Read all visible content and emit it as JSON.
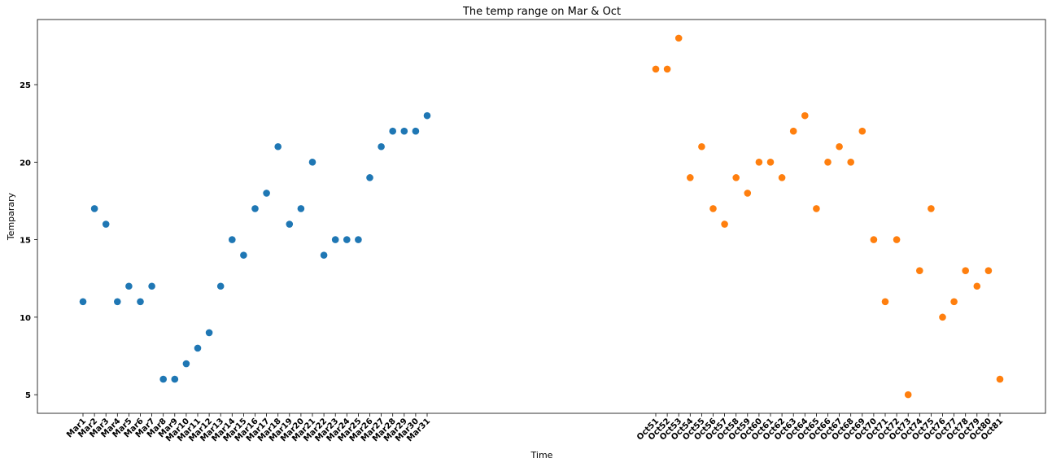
{
  "chart_data": {
    "type": "scatter",
    "title": "The temp range on Mar & Oct",
    "xlabel": "Time",
    "ylabel": "Temparary",
    "yticks": [
      5,
      10,
      15,
      20,
      25
    ],
    "ylim": [
      3.8,
      29.2
    ],
    "grid": false,
    "series": [
      {
        "color": "#1f77b4",
        "x": [
          "Mar1",
          "Mar2",
          "Mar3",
          "Mar4",
          "Mar5",
          "Mar6",
          "Mar7",
          "Mar8",
          "Mar9",
          "Mar10",
          "Mar11",
          "Mar12",
          "Mar13",
          "Mar14",
          "Mar15",
          "Mar16",
          "Mar17",
          "Mar18",
          "Mar19",
          "Mar20",
          "Mar21",
          "Mar22",
          "Mar23",
          "Mar24",
          "Mar25",
          "Mar26",
          "Mar27",
          "Mar28",
          "Mar29",
          "Mar30",
          "Mar31"
        ],
        "values": [
          11,
          17,
          16,
          11,
          12,
          11,
          12,
          6,
          6,
          7,
          8,
          9,
          12,
          15,
          14,
          17,
          18,
          21,
          16,
          17,
          20,
          14,
          15,
          15,
          15,
          19,
          21,
          22,
          22,
          22,
          23
        ]
      },
      {
        "color": "#ff7f0e",
        "x": [
          "Oct51",
          "Oct52",
          "Oct53",
          "Oct54",
          "Oct55",
          "Oct56",
          "Oct57",
          "Oct58",
          "Oct59",
          "Oct60",
          "Oct61",
          "Oct62",
          "Oct63",
          "Oct64",
          "Oct65",
          "Oct66",
          "Oct67",
          "Oct68",
          "Oct69",
          "Oct70",
          "Oct71",
          "Oct72",
          "Oct73",
          "Oct74",
          "Oct75",
          "Oct76",
          "Oct77",
          "Oct78",
          "Oct79",
          "Oct80",
          "Oct81"
        ],
        "values": [
          26,
          26,
          28,
          19,
          21,
          17,
          16,
          19,
          18,
          20,
          20,
          19,
          22,
          23,
          17,
          20,
          21,
          20,
          22,
          15,
          11,
          15,
          5,
          13,
          17,
          10,
          11,
          13,
          12,
          13,
          6
        ]
      }
    ]
  }
}
